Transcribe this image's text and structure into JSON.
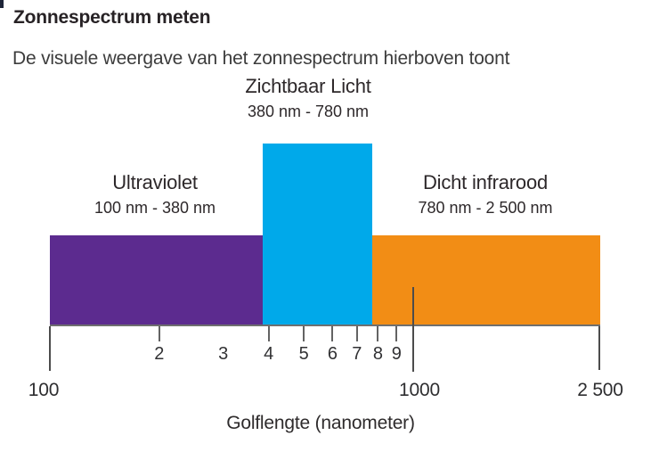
{
  "page": {
    "title": "Zonnespectrum meten",
    "subtitle": "De visuele weergave van het zonnespectrum hierboven toont"
  },
  "chart_data": {
    "type": "bar",
    "title": "Zonnespectrum meten",
    "subtitle": "De visuele weergave van het zonnespectrum hierboven toont",
    "xlabel": "Golflengte (nanometer)",
    "x_scale": "log10 from 100 nm to 1000 nm, compressed end segment to 2 500 nm",
    "x_range_nm": [
      100,
      2500
    ],
    "grid": "off",
    "legend": "none",
    "bands": [
      {
        "label": "Ultraviolet",
        "range_label": "100 nm - 380 nm",
        "from_nm": 100,
        "to_nm": 380,
        "color": "#5C2B8F",
        "relative_height": 0.5
      },
      {
        "label": "Zichtbaar Licht",
        "range_label": "380 nm - 780 nm",
        "from_nm": 380,
        "to_nm": 780,
        "color": "#00A9EA",
        "relative_height": 1.0
      },
      {
        "label": "Dicht infrarood",
        "range_label": "780 nm - 2 500 nm",
        "from_nm": 780,
        "to_nm": 2500,
        "color": "#F28D15",
        "relative_height": 0.5
      }
    ],
    "minor_ticks": [
      {
        "label": "2",
        "value_nm": 200,
        "has_tick": true
      },
      {
        "label": "3",
        "value_nm": 300,
        "has_tick": false
      },
      {
        "label": "4",
        "value_nm": 400,
        "has_tick": true
      },
      {
        "label": "5",
        "value_nm": 500,
        "has_tick": true
      },
      {
        "label": "6",
        "value_nm": 600,
        "has_tick": true
      },
      {
        "label": "7",
        "value_nm": 700,
        "has_tick": true
      },
      {
        "label": "8",
        "value_nm": 800,
        "has_tick": true
      },
      {
        "label": "9",
        "value_nm": 900,
        "has_tick": true
      }
    ],
    "major_ticks": [
      {
        "label": "100",
        "value_nm": 100
      },
      {
        "label": "1000",
        "value_nm": 1000
      },
      {
        "label": "2 500",
        "value_nm": 2500
      }
    ]
  },
  "colors": {
    "ultraviolet": "#5C2B8F",
    "visible_light": "#00A9EA",
    "infrared": "#F28D15",
    "axis": "#6f6f6f",
    "text": "#2d292b"
  }
}
